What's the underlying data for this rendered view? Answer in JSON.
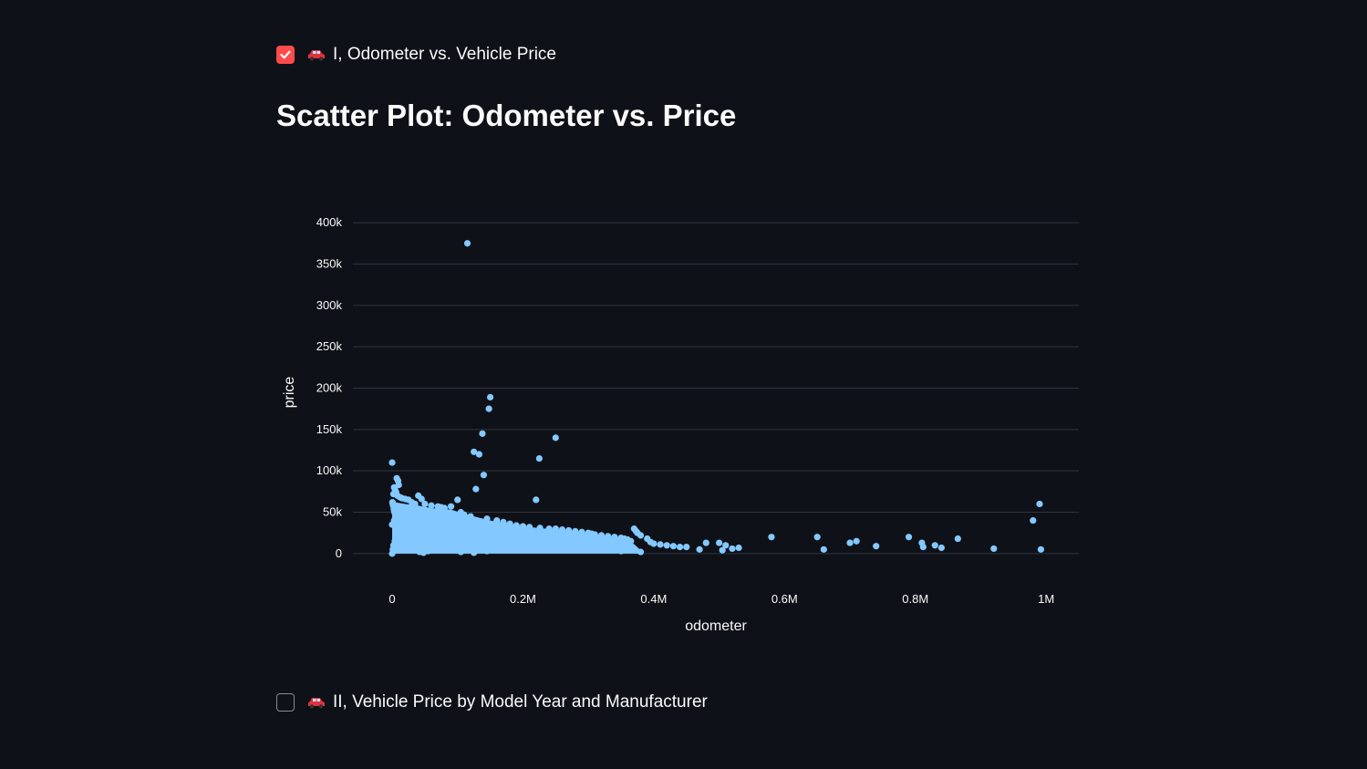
{
  "checkboxes": [
    {
      "label": "I, Odometer vs. Vehicle Price",
      "checked": true,
      "icon": "car-icon"
    },
    {
      "label": "II, Vehicle Price by Model Year and Manufacturer",
      "checked": false,
      "icon": "car-icon"
    }
  ],
  "page": {
    "title": "Scatter Plot: Odometer vs. Price"
  },
  "colors": {
    "background": "#0e1117",
    "accent": "#ff4b4b",
    "marker": "#83c9ff",
    "grid": "#31333f"
  },
  "chart_data": {
    "type": "scatter",
    "title": "",
    "xlabel": "odometer",
    "ylabel": "price",
    "xlim": [
      -60000,
      1050000
    ],
    "ylim": [
      -20000,
      410000
    ],
    "xticks": [
      {
        "value": 0,
        "label": "0"
      },
      {
        "value": 200000,
        "label": "0.2M"
      },
      {
        "value": 400000,
        "label": "0.4M"
      },
      {
        "value": 600000,
        "label": "0.6M"
      },
      {
        "value": 800000,
        "label": "0.8M"
      },
      {
        "value": 1000000,
        "label": "1M"
      }
    ],
    "yticks": [
      {
        "value": 0,
        "label": "0"
      },
      {
        "value": 50000,
        "label": "50k"
      },
      {
        "value": 100000,
        "label": "100k"
      },
      {
        "value": 150000,
        "label": "150k"
      },
      {
        "value": 200000,
        "label": "200k"
      },
      {
        "value": 250000,
        "label": "250k"
      },
      {
        "value": 300000,
        "label": "300k"
      },
      {
        "value": 350000,
        "label": "350k"
      },
      {
        "value": 400000,
        "label": "400k"
      }
    ],
    "grid": true,
    "series": [
      {
        "color": "#83c9ff",
        "x": [
          115000,
          150000,
          148000,
          138000,
          250000,
          125000,
          133000,
          0,
          225000,
          140000,
          7000,
          9000,
          10000,
          3000,
          4000,
          5000,
          6000,
          2000,
          8000,
          12000,
          15000,
          20000,
          25000,
          30000,
          35000,
          40000,
          45000,
          50000,
          60000,
          70000,
          75000,
          80000,
          90000,
          100000,
          105000,
          110000,
          120000,
          128000,
          145000,
          160000,
          170000,
          180000,
          190000,
          200000,
          210000,
          220000,
          226000,
          240000,
          250000,
          260000,
          270000,
          280000,
          290000,
          300000,
          305000,
          310000,
          320000,
          330000,
          340000,
          350000,
          355000,
          360000,
          365000,
          370000,
          373000,
          375000,
          380000,
          390000,
          395000,
          400000,
          410000,
          420000,
          430000,
          440000,
          450000,
          470000,
          480000,
          500000,
          505000,
          510000,
          520000,
          530000,
          580000,
          650000,
          660000,
          700000,
          710000,
          740000,
          790000,
          810000,
          812000,
          830000,
          840000,
          865000,
          920000,
          980000,
          990000,
          992000,
          0,
          1000,
          2000,
          4000,
          6000,
          8000,
          10000,
          0,
          3000,
          5000,
          7000,
          9000,
          11000,
          13000,
          14000,
          16000,
          18000,
          22000,
          28000,
          32000,
          38000,
          42000,
          48000,
          55000,
          65000,
          85000,
          95000,
          115000,
          135000,
          155000,
          175000,
          195000,
          215000,
          235000,
          255000,
          275000,
          295000,
          315000,
          335000,
          345000,
          1000,
          3000,
          5000,
          8000,
          12000,
          18000,
          25000,
          35000,
          45000,
          55000,
          65000,
          75000,
          85000,
          95000,
          105000,
          125000,
          145000,
          165000,
          185000,
          205000,
          230000,
          260000,
          290000,
          320000,
          350000,
          380000,
          500,
          1500,
          2500,
          3500,
          6500,
          9500
        ],
        "y": [
          375000,
          189000,
          175000,
          145000,
          140000,
          123000,
          120000,
          110000,
          115000,
          95000,
          91000,
          88000,
          83000,
          80000,
          78000,
          76000,
          74000,
          72000,
          70000,
          68000,
          67000,
          66000,
          65000,
          62000,
          60000,
          70000,
          66000,
          60000,
          58000,
          57000,
          56000,
          55000,
          57000,
          65000,
          50000,
          47000,
          45000,
          78000,
          42000,
          40000,
          38000,
          36000,
          34000,
          33000,
          32000,
          65000,
          31000,
          30000,
          30000,
          29000,
          28000,
          27000,
          26000,
          25000,
          24000,
          23000,
          22000,
          21000,
          20000,
          19000,
          18000,
          17000,
          15000,
          30000,
          27000,
          25000,
          22000,
          18000,
          14000,
          12000,
          11000,
          10000,
          9000,
          8000,
          8000,
          5000,
          13000,
          13000,
          4000,
          10000,
          6000,
          7000,
          20000,
          20000,
          5000,
          13000,
          15000,
          9000,
          20000,
          13000,
          8000,
          10000,
          7000,
          18000,
          6000,
          40000,
          60000,
          5000,
          0,
          5000,
          10000,
          15000,
          20000,
          25000,
          30000,
          35000,
          40000,
          45000,
          50000,
          55000,
          45000,
          40000,
          35000,
          30000,
          25000,
          20000,
          15000,
          10000,
          5000,
          2000,
          1000,
          3000,
          6000,
          9000,
          12000,
          15000,
          18000,
          21000,
          24000,
          27000,
          20000,
          18000,
          16000,
          14000,
          12000,
          10000,
          8000,
          6000,
          60000,
          52000,
          48000,
          44000,
          40000,
          36000,
          32000,
          28000,
          24000,
          20000,
          16000,
          12000,
          8000,
          4000,
          2000,
          1000,
          3000,
          5000,
          7000,
          9000,
          11000,
          13000,
          9000,
          5000,
          3000,
          2000,
          62000,
          58000,
          54000,
          50000,
          46000,
          42000
        ]
      }
    ]
  }
}
